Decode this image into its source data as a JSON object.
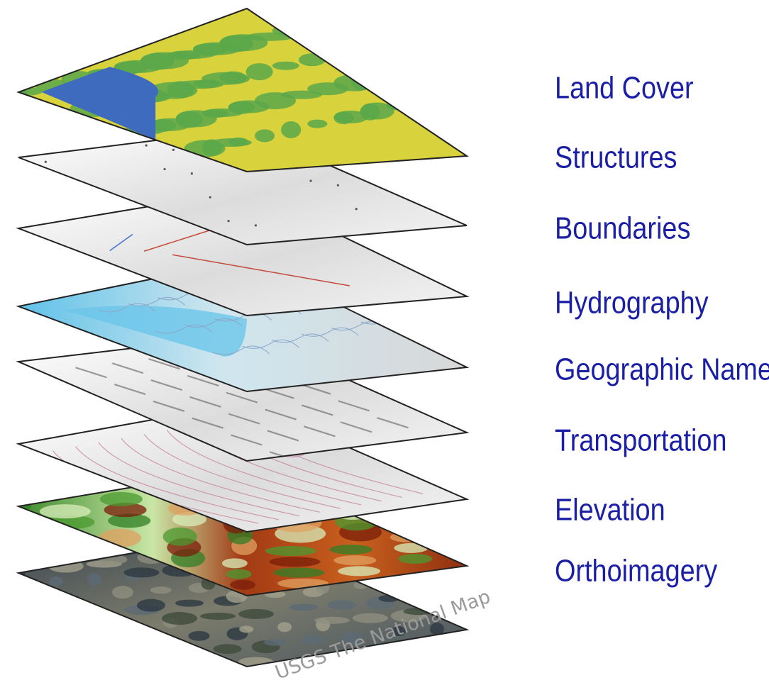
{
  "layers": [
    {
      "id": "land-cover",
      "label": "Land Cover",
      "fill": "#d8d23c",
      "texture": "land"
    },
    {
      "id": "structures",
      "label": "Structures",
      "fill": "#f1f1f1",
      "texture": "gradient"
    },
    {
      "id": "boundaries",
      "label": "Boundaries",
      "fill": "#f1f1f1",
      "texture": "boundary"
    },
    {
      "id": "hydrography",
      "label": "Hydrography",
      "fill": "#e4e6e8",
      "texture": "water"
    },
    {
      "id": "geographic-names",
      "label": "Geographic Names",
      "fill": "#f3f3f3",
      "texture": "names"
    },
    {
      "id": "transportation",
      "label": "Transportation",
      "fill": "#f3f3f3",
      "texture": "roads"
    },
    {
      "id": "elevation",
      "label": "Elevation",
      "fill": "#b54a1c",
      "texture": "elevation"
    },
    {
      "id": "orthoimagery",
      "label": "Orthoimagery",
      "fill": "#56616a",
      "texture": "imagery"
    }
  ],
  "colors": {
    "label": "#1a1fa6",
    "outline": "#222222",
    "water": "#3f6bbf",
    "green": "#5aa84a",
    "boundary_line": "#c44a3a"
  },
  "watermark": "USGS The National Map"
}
